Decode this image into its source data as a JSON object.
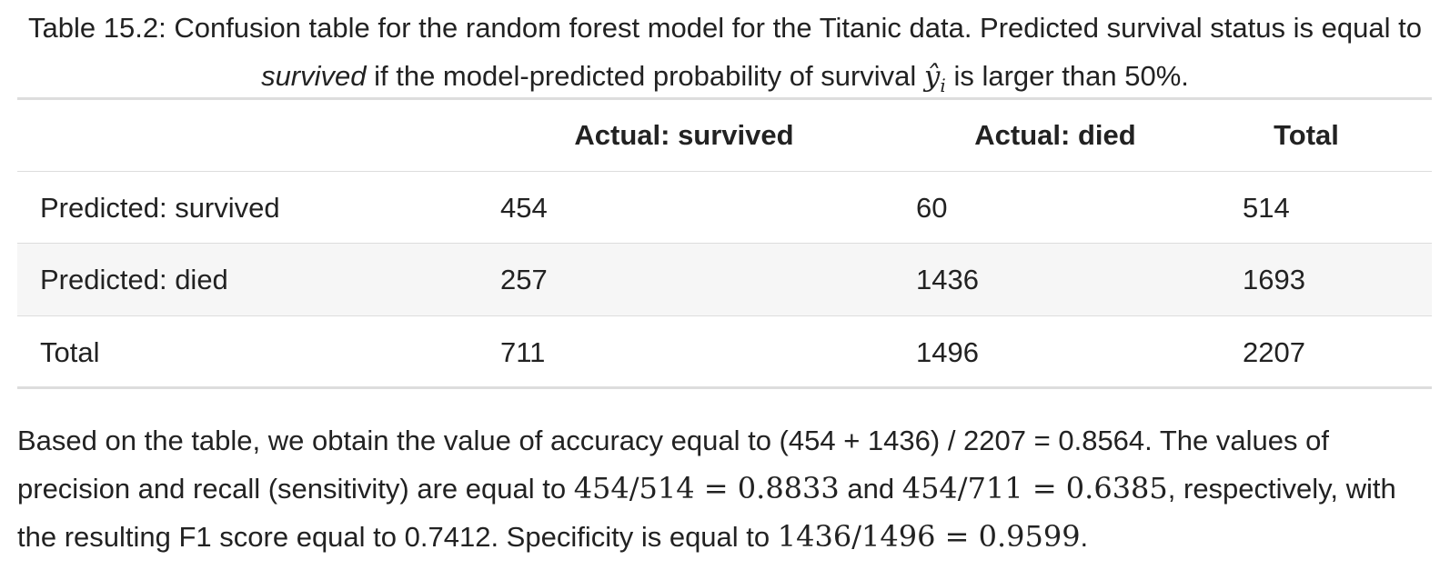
{
  "caption": {
    "prefix": "Table 15.2: Confusion table for the random forest model for the Titanic data. Predicted survival status is equal to ",
    "italic": "survived",
    "middle": " if the model-predicted probability of survival ",
    "math_symbol": "ŷ",
    "math_subscript": "i",
    "suffix": " is larger than 50%."
  },
  "table": {
    "columns": [
      "",
      "Actual: survived",
      "Actual: died",
      "Total"
    ],
    "rows": [
      {
        "label": "Predicted: survived",
        "survived": "454",
        "died": "60",
        "total": "514"
      },
      {
        "label": "Predicted: died",
        "survived": "257",
        "died": "1436",
        "total": "1693"
      },
      {
        "label": "Total",
        "survived": "711",
        "died": "1496",
        "total": "2207"
      }
    ]
  },
  "paragraph": {
    "text1": "Based on the table, we obtain the value of accuracy equal to (454 + 1436) / 2207 = 0.8564. The values of precision and recall (sensitivity) are equal to ",
    "math1": "454/514 = 0.8833",
    "text2": " and ",
    "math2": "454/711 = 0.6385",
    "text3": ", respectively, with the resulting F1 score equal to 0.7412. Specificity is equal to ",
    "math3": "1436/1496 = 0.9599",
    "text4": "."
  }
}
